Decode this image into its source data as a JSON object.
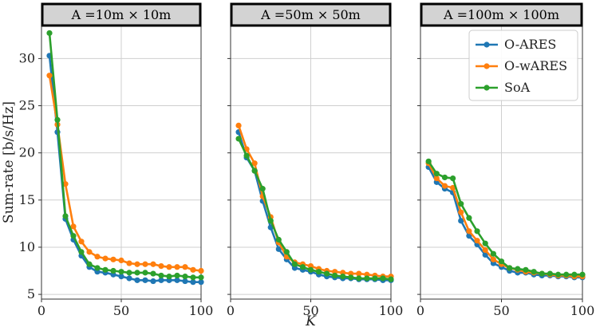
{
  "chart_data": {
    "type": "line",
    "ylabel": "Sum-rate [b/s/Hz]",
    "xlabel": "K",
    "xlim": [
      0,
      100
    ],
    "ylim": [
      4.5,
      33.5
    ],
    "xticks": [
      0,
      50,
      100
    ],
    "yticks": [
      5,
      10,
      15,
      20,
      25,
      30
    ],
    "grid": true,
    "legend_position": "top-right of third panel",
    "colors": {
      "O-ARES": "#1f77b4",
      "O-wARES": "#ff7f0e",
      "SoA": "#2ca02c"
    },
    "x": [
      5,
      10,
      15,
      20,
      25,
      30,
      35,
      40,
      45,
      50,
      55,
      60,
      65,
      70,
      75,
      80,
      85,
      90,
      95,
      100
    ],
    "panels": [
      {
        "title": "A =10m × 10m",
        "series": [
          {
            "name": "O-ARES",
            "values": [
              30.3,
              22.2,
              13.0,
              10.8,
              9.1,
              7.9,
              7.4,
              7.3,
              7.1,
              6.9,
              6.7,
              6.5,
              6.5,
              6.4,
              6.5,
              6.5,
              6.5,
              6.4,
              6.3,
              6.3
            ]
          },
          {
            "name": "O-wARES",
            "values": [
              28.2,
              23.0,
              16.7,
              12.2,
              10.6,
              9.5,
              9.0,
              8.8,
              8.7,
              8.6,
              8.3,
              8.2,
              8.2,
              8.2,
              8.0,
              7.9,
              7.9,
              7.9,
              7.6,
              7.5
            ]
          },
          {
            "name": "SoA",
            "values": [
              32.7,
              23.5,
              13.3,
              11.2,
              9.5,
              8.2,
              7.8,
              7.6,
              7.5,
              7.4,
              7.3,
              7.3,
              7.3,
              7.2,
              7.0,
              6.9,
              7.0,
              6.9,
              6.8,
              6.8
            ]
          }
        ]
      },
      {
        "title": "A =50m × 50m",
        "series": [
          {
            "name": "O-ARES",
            "values": [
              22.2,
              19.5,
              18.1,
              14.9,
              12.1,
              9.8,
              8.7,
              7.8,
              7.6,
              7.4,
              7.1,
              6.9,
              6.8,
              6.7,
              6.7,
              6.6,
              6.6,
              6.6,
              6.5,
              6.5
            ]
          },
          {
            "name": "O-wARES",
            "values": [
              22.9,
              20.4,
              18.9,
              15.4,
              13.2,
              10.5,
              9.0,
              8.4,
              8.2,
              8.0,
              7.7,
              7.5,
              7.4,
              7.3,
              7.2,
              7.2,
              7.1,
              7.0,
              6.9,
              6.9
            ]
          },
          {
            "name": "SoA",
            "values": [
              21.5,
              19.7,
              18.1,
              16.2,
              12.8,
              10.8,
              9.5,
              8.2,
              7.9,
              7.6,
              7.4,
              7.2,
              7.0,
              6.9,
              6.8,
              6.7,
              6.7,
              6.7,
              6.7,
              6.6
            ]
          }
        ]
      },
      {
        "title": "A =100m × 100m",
        "series": [
          {
            "name": "O-ARES",
            "values": [
              18.5,
              16.9,
              16.2,
              15.8,
              12.8,
              11.2,
              10.3,
              9.2,
              8.3,
              7.9,
              7.5,
              7.3,
              7.3,
              7.1,
              7.0,
              7.0,
              6.9,
              6.9,
              6.8,
              6.8
            ]
          },
          {
            "name": "O-wARES",
            "values": [
              18.9,
              17.3,
              16.5,
              16.3,
              13.7,
              11.7,
              10.7,
              9.7,
              8.7,
              8.2,
              7.8,
              7.6,
              7.4,
              7.3,
              7.2,
              7.1,
              7.0,
              7.0,
              6.9,
              6.9
            ]
          },
          {
            "name": "SoA",
            "values": [
              19.1,
              17.8,
              17.4,
              17.3,
              14.6,
              13.1,
              11.7,
              10.4,
              9.3,
              8.5,
              7.8,
              7.7,
              7.6,
              7.4,
              7.2,
              7.2,
              7.1,
              7.1,
              7.1,
              7.1
            ]
          }
        ]
      }
    ]
  }
}
